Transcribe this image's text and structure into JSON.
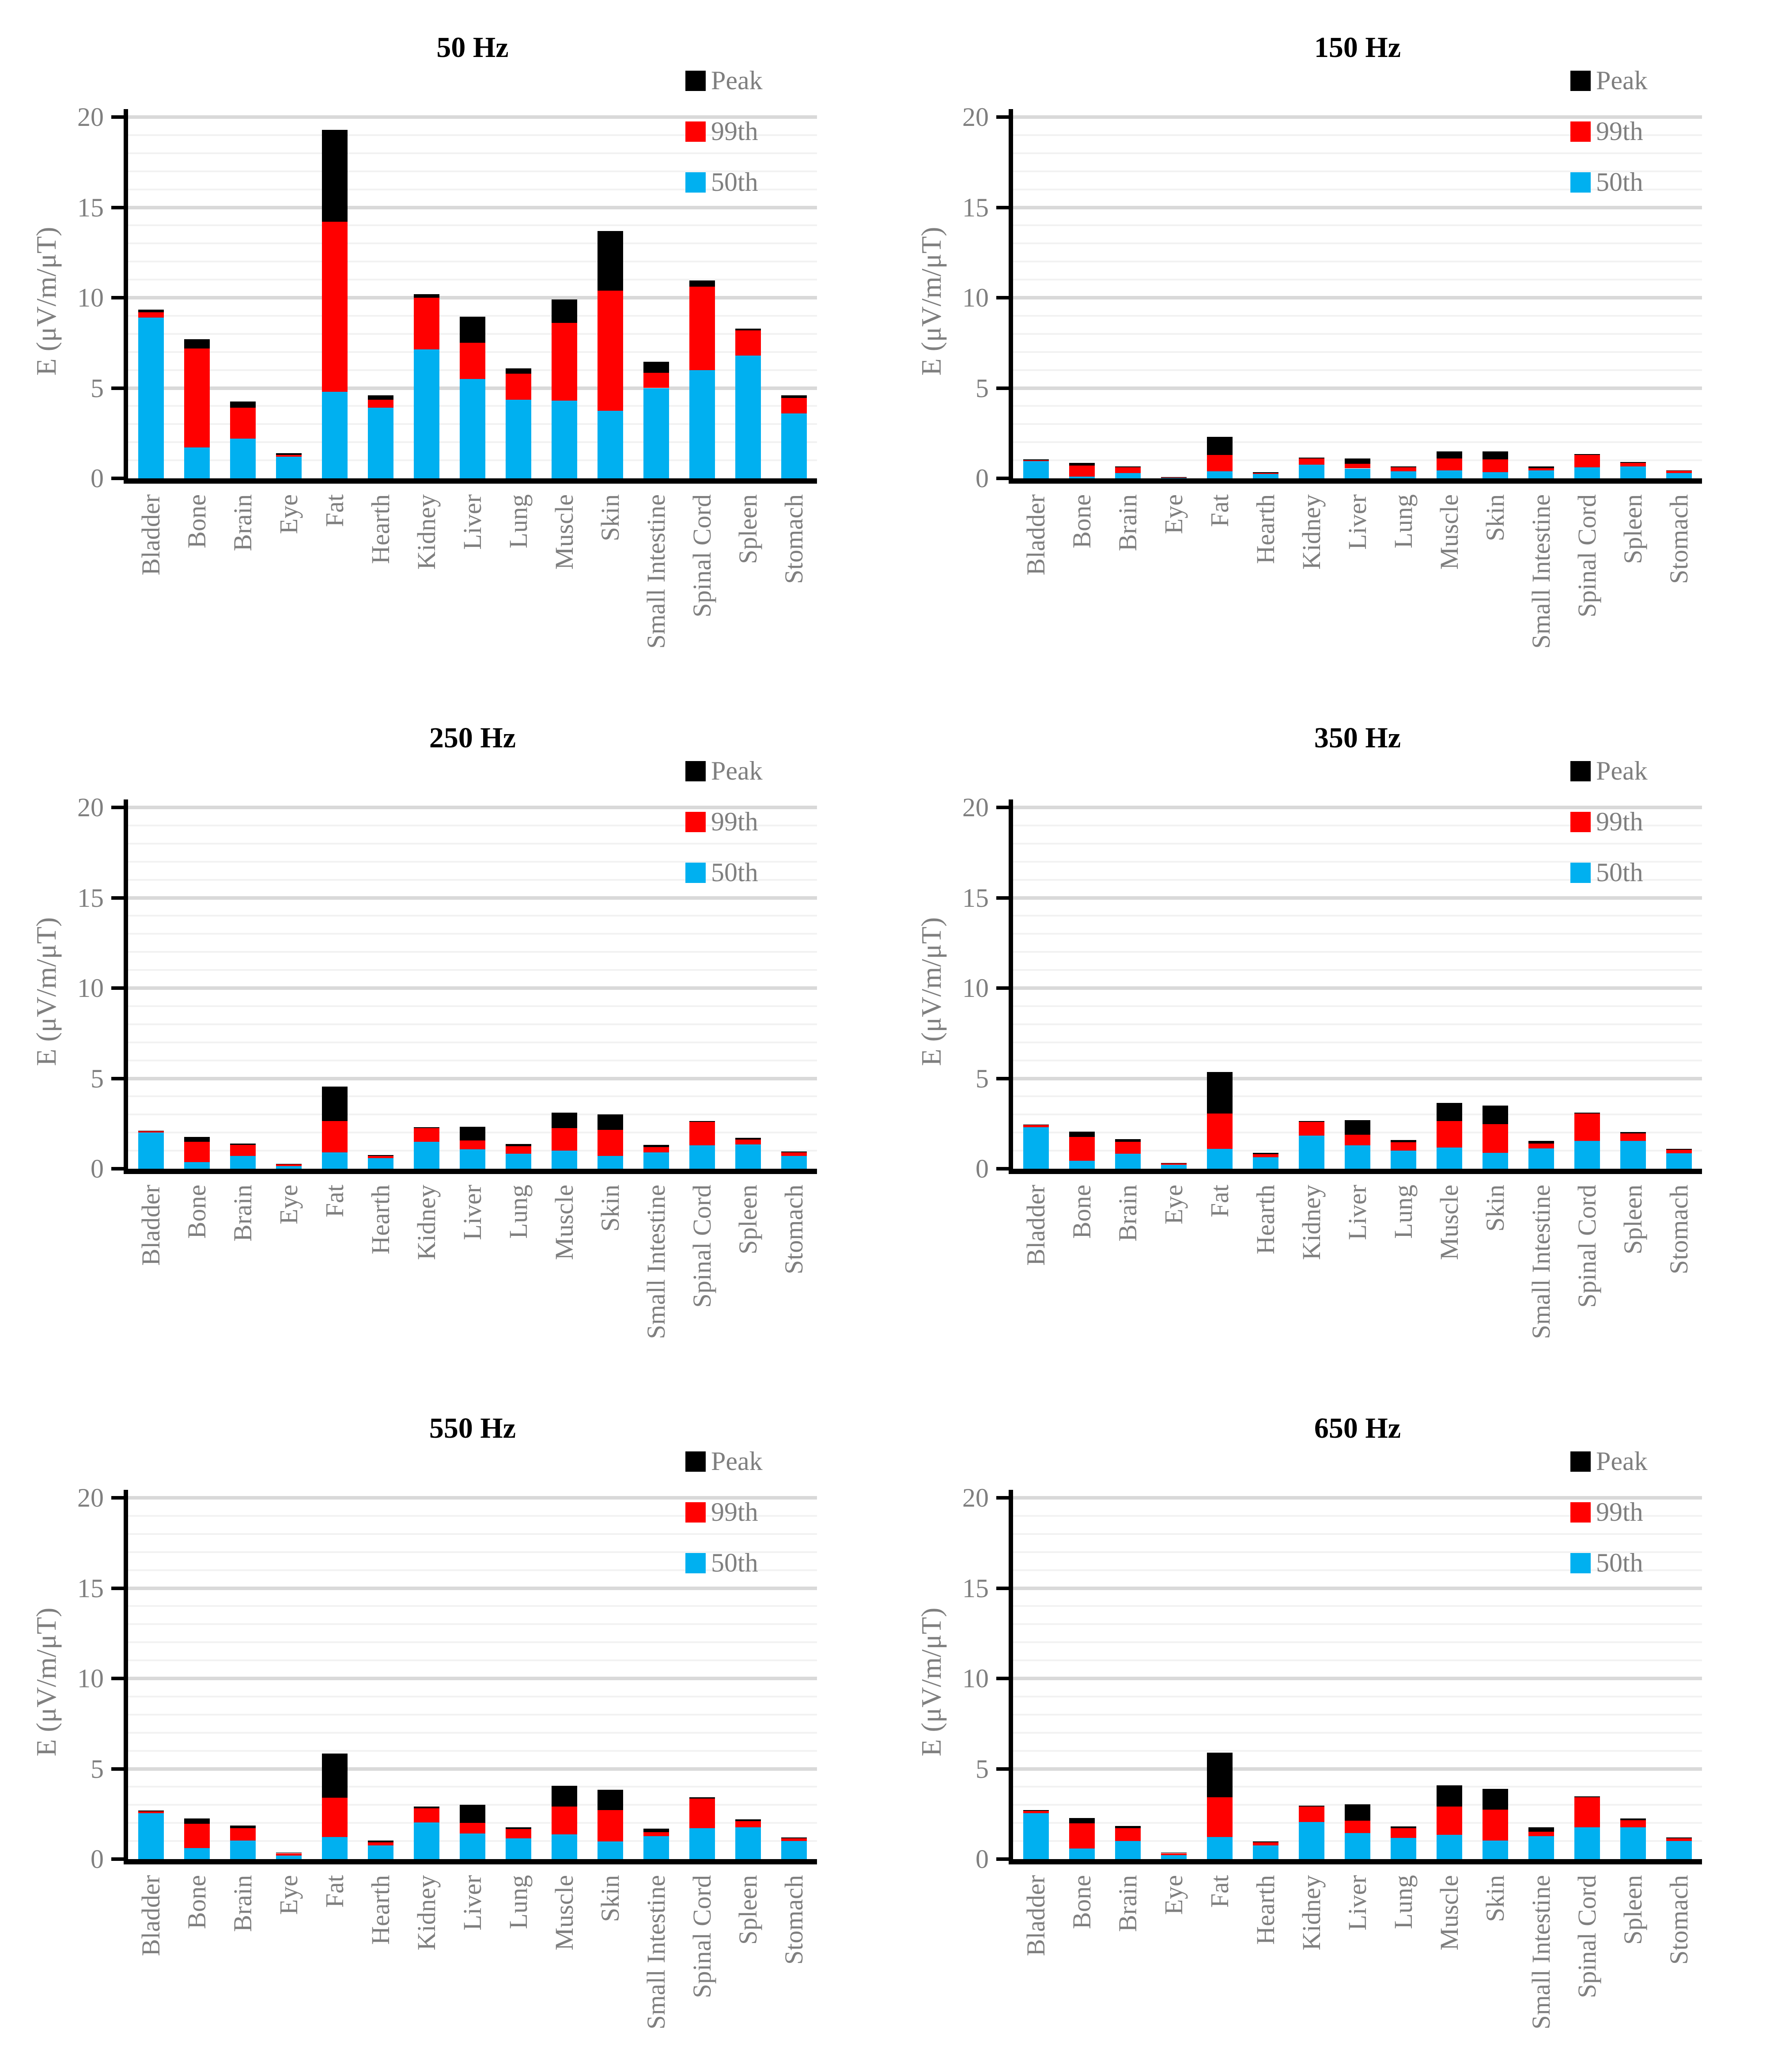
{
  "figure": {
    "layout": "2x3 grid of stacked bar charts",
    "background": "#FFFFFF"
  },
  "colors": {
    "peak": "#000000",
    "p99": "#FF0000",
    "p50": "#00B0F0",
    "axis_text": "#7F7F7F",
    "title_text": "#000000",
    "axis_line": "#000000",
    "major_grid": "#D9D9D9",
    "minor_grid": "#F2F2F2"
  },
  "legend": {
    "position": "top-right inside plot",
    "items": [
      {
        "label": "Peak",
        "color_key": "peak"
      },
      {
        "label": "99th",
        "color_key": "p99"
      },
      {
        "label": "50th",
        "color_key": "p50"
      }
    ]
  },
  "chart_data": [
    {
      "type": "bar",
      "stacked": true,
      "values_are": "cumulative stack tops read from axis",
      "title": "50 Hz",
      "xlabel": "",
      "ylabel": "E (μV/m/μT)",
      "ylim": [
        0,
        20
      ],
      "yticks": [
        0,
        5,
        10,
        15,
        20
      ],
      "grid": "minor every 1, major every 5",
      "categories": [
        "Bladder",
        "Bone",
        "Brain",
        "Eye",
        "Fat",
        "Hearth",
        "Kidney",
        "Liver",
        "Lung",
        "Muscle",
        "Skin",
        "Small Intestine",
        "Spinal Cord",
        "Spleen",
        "Stomach"
      ],
      "series": [
        {
          "name": "50th",
          "values": [
            8.9,
            1.7,
            2.2,
            1.2,
            4.8,
            3.9,
            7.15,
            5.5,
            4.35,
            4.3,
            3.75,
            5.0,
            6.0,
            6.8,
            3.6
          ]
        },
        {
          "name": "99th",
          "values": [
            9.2,
            7.2,
            3.9,
            1.3,
            14.2,
            4.35,
            10.0,
            7.5,
            5.8,
            8.6,
            10.4,
            5.85,
            10.6,
            8.2,
            4.45
          ]
        },
        {
          "name": "Peak",
          "values": [
            9.35,
            7.7,
            4.25,
            1.4,
            19.3,
            4.6,
            10.2,
            8.95,
            6.1,
            9.9,
            13.7,
            6.45,
            10.95,
            8.3,
            4.6
          ]
        }
      ]
    },
    {
      "type": "bar",
      "stacked": true,
      "values_are": "cumulative stack tops read from axis",
      "title": "150 Hz",
      "xlabel": "",
      "ylabel": "E (μV/m/μT)",
      "ylim": [
        0,
        20
      ],
      "yticks": [
        0,
        5,
        10,
        15,
        20
      ],
      "grid": "minor every 1, major every 5",
      "categories": [
        "Bladder",
        "Bone",
        "Brain",
        "Eye",
        "Fat",
        "Hearth",
        "Kidney",
        "Liver",
        "Lung",
        "Muscle",
        "Skin",
        "Small Intestine",
        "Spinal Cord",
        "Spleen",
        "Stomach"
      ],
      "series": [
        {
          "name": "50th",
          "values": [
            0.95,
            0.1,
            0.3,
            0.03,
            0.4,
            0.25,
            0.75,
            0.55,
            0.4,
            0.45,
            0.35,
            0.45,
            0.6,
            0.65,
            0.3
          ]
        },
        {
          "name": "99th",
          "values": [
            1.0,
            0.7,
            0.62,
            0.06,
            1.3,
            0.3,
            1.1,
            0.8,
            0.62,
            1.1,
            1.05,
            0.57,
            1.3,
            0.85,
            0.42
          ]
        },
        {
          "name": "Peak",
          "values": [
            1.05,
            0.85,
            0.66,
            0.08,
            2.3,
            0.35,
            1.15,
            1.1,
            0.67,
            1.5,
            1.5,
            0.65,
            1.35,
            0.9,
            0.45
          ]
        }
      ]
    },
    {
      "type": "bar",
      "stacked": true,
      "values_are": "cumulative stack tops read from axis",
      "title": "250 Hz",
      "xlabel": "",
      "ylabel": "E (μV/m/μT)",
      "ylim": [
        0,
        20
      ],
      "yticks": [
        0,
        5,
        10,
        15,
        20
      ],
      "grid": "minor every 1, major every 5",
      "categories": [
        "Bladder",
        "Bone",
        "Brain",
        "Eye",
        "Fat",
        "Hearth",
        "Kidney",
        "Liver",
        "Lung",
        "Muscle",
        "Skin",
        "Small Intestine",
        "Spinal Cord",
        "Spleen",
        "Stomach"
      ],
      "series": [
        {
          "name": "50th",
          "values": [
            2.0,
            0.37,
            0.7,
            0.15,
            0.9,
            0.58,
            1.5,
            1.07,
            0.84,
            1.0,
            0.7,
            0.9,
            1.3,
            1.35,
            0.7
          ]
        },
        {
          "name": "99th",
          "values": [
            2.07,
            1.5,
            1.32,
            0.25,
            2.65,
            0.7,
            2.24,
            1.56,
            1.25,
            2.26,
            2.14,
            1.2,
            2.6,
            1.62,
            0.9
          ]
        },
        {
          "name": "Peak",
          "values": [
            2.1,
            1.75,
            1.4,
            0.27,
            4.55,
            0.76,
            2.3,
            2.32,
            1.36,
            3.1,
            3.0,
            1.32,
            2.65,
            1.7,
            0.95
          ]
        }
      ]
    },
    {
      "type": "bar",
      "stacked": true,
      "values_are": "cumulative stack tops read from axis",
      "title": "350 Hz",
      "xlabel": "",
      "ylabel": "E (μV/m/μT)",
      "ylim": [
        0,
        20
      ],
      "yticks": [
        0,
        5,
        10,
        15,
        20
      ],
      "grid": "minor every 1, major every 5",
      "categories": [
        "Bladder",
        "Bone",
        "Brain",
        "Eye",
        "Fat",
        "Hearth",
        "Kidney",
        "Liver",
        "Lung",
        "Muscle",
        "Skin",
        "Small Intestine",
        "Spinal Cord",
        "Spleen",
        "Stomach"
      ],
      "series": [
        {
          "name": "50th",
          "values": [
            2.3,
            0.45,
            0.84,
            0.23,
            1.1,
            0.64,
            1.83,
            1.3,
            1.0,
            1.17,
            0.87,
            1.12,
            1.55,
            1.55,
            0.85
          ]
        },
        {
          "name": "99th",
          "values": [
            2.42,
            1.75,
            1.5,
            0.3,
            3.05,
            0.8,
            2.58,
            1.88,
            1.46,
            2.65,
            2.48,
            1.4,
            3.05,
            1.95,
            1.05
          ]
        },
        {
          "name": "Peak",
          "values": [
            2.45,
            2.05,
            1.63,
            0.32,
            5.35,
            0.87,
            2.63,
            2.7,
            1.6,
            3.65,
            3.5,
            1.55,
            3.1,
            2.02,
            1.1
          ]
        }
      ]
    },
    {
      "type": "bar",
      "stacked": true,
      "values_are": "cumulative stack tops read from axis",
      "title": "550 Hz",
      "xlabel": "",
      "ylabel": "E (μV/m/μT)",
      "ylim": [
        0,
        20
      ],
      "yticks": [
        0,
        5,
        10,
        15,
        20
      ],
      "grid": "minor every 1, major every 5",
      "categories": [
        "Bladder",
        "Bone",
        "Brain",
        "Eye",
        "Fat",
        "Hearth",
        "Kidney",
        "Liver",
        "Lung",
        "Muscle",
        "Skin",
        "Small Intestine",
        "Spinal Cord",
        "Spleen",
        "Stomach"
      ],
      "series": [
        {
          "name": "50th",
          "values": [
            2.54,
            0.6,
            1.02,
            0.19,
            1.22,
            0.76,
            2.03,
            1.42,
            1.14,
            1.36,
            0.98,
            1.26,
            1.7,
            1.75,
            1.0
          ]
        },
        {
          "name": "99th",
          "values": [
            2.64,
            1.95,
            1.72,
            0.33,
            3.4,
            0.93,
            2.82,
            2.0,
            1.67,
            2.9,
            2.72,
            1.5,
            3.35,
            2.1,
            1.15
          ]
        },
        {
          "name": "Peak",
          "values": [
            2.68,
            2.25,
            1.85,
            0.36,
            5.85,
            1.02,
            2.9,
            3.0,
            1.76,
            4.05,
            3.85,
            1.68,
            3.42,
            2.2,
            1.2
          ]
        }
      ]
    },
    {
      "type": "bar",
      "stacked": true,
      "values_are": "cumulative stack tops read from axis",
      "title": "650 Hz",
      "xlabel": "",
      "ylabel": "E (μV/m/μT)",
      "ylim": [
        0,
        20
      ],
      "yticks": [
        0,
        5,
        10,
        15,
        20
      ],
      "grid": "minor every 1, major every 5",
      "categories": [
        "Bladder",
        "Bone",
        "Brain",
        "Eye",
        "Fat",
        "Hearth",
        "Kidney",
        "Liver",
        "Lung",
        "Muscle",
        "Skin",
        "Small Intestine",
        "Spinal Cord",
        "Spleen",
        "Stomach"
      ],
      "series": [
        {
          "name": "50th",
          "values": [
            2.55,
            0.58,
            1.0,
            0.21,
            1.23,
            0.76,
            2.05,
            1.45,
            1.17,
            1.35,
            1.02,
            1.26,
            1.75,
            1.75,
            1.0
          ]
        },
        {
          "name": "99th",
          "values": [
            2.67,
            1.97,
            1.71,
            0.33,
            3.43,
            0.92,
            2.9,
            2.13,
            1.7,
            2.9,
            2.73,
            1.52,
            3.43,
            2.15,
            1.15
          ]
        },
        {
          "name": "Peak",
          "values": [
            2.72,
            2.27,
            1.83,
            0.37,
            5.9,
            0.98,
            2.96,
            3.04,
            1.8,
            4.08,
            3.88,
            1.75,
            3.48,
            2.25,
            1.2
          ]
        }
      ]
    }
  ]
}
